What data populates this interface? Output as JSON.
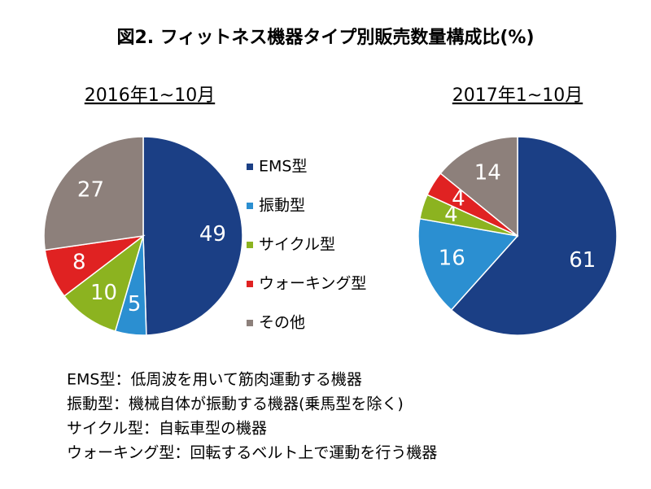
{
  "title": "図2. フィットネス機器タイプ別販売数量構成比(%)",
  "legend": {
    "categories": [
      "EMS型",
      "振動型",
      "サイクル型",
      "ウォーキング型",
      "その他"
    ],
    "colors": [
      "#1b3f85",
      "#2b8fd1",
      "#8cb320",
      "#e02222",
      "#8d807b"
    ]
  },
  "chart_data": [
    {
      "type": "pie",
      "title": "2016年1~10月",
      "values": [
        49,
        5,
        10,
        8,
        27
      ]
    },
    {
      "type": "pie",
      "title": "2017年1~10月",
      "values": [
        61,
        16,
        4,
        4,
        14
      ]
    }
  ],
  "notes": [
    "EMS型：低周波を用いて筋肉運動する機器",
    "振動型：機械自体が振動する機器(乗馬型を除く)",
    "サイクル型：自転車型の機器",
    "ウォーキング型：回転するベルト上で運動を行う機器"
  ]
}
